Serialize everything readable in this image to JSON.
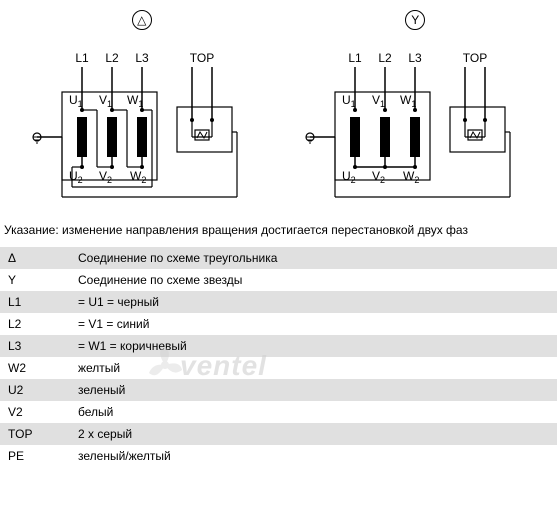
{
  "symbols": {
    "delta": "△",
    "wye": "Y"
  },
  "diagram_labels": {
    "L1": "L1",
    "L2": "L2",
    "L3": "L3",
    "TOP": "TOP",
    "U1": "U",
    "V1": "V",
    "W1": "W",
    "U2": "U",
    "V2": "V",
    "W2": "W",
    "sub1": "1",
    "sub2": "2"
  },
  "note": "Указание: изменение направления вращения достигается перестановкой двух фаз",
  "table": [
    {
      "key": "Δ",
      "value": "Соединение по схеме треугольника"
    },
    {
      "key": "Y",
      "value": "Соединение по схеме звезды"
    },
    {
      "key": "L1",
      "value": "= U1 = черный"
    },
    {
      "key": "L2",
      "value": "= V1 = синий"
    },
    {
      "key": "L3",
      "value": "= W1 = коричневый"
    },
    {
      "key": "W2",
      "value": "желтый"
    },
    {
      "key": "U2",
      "value": "зеленый"
    },
    {
      "key": "V2",
      "value": "белый"
    },
    {
      "key": "TOP",
      "value": "2 x серый"
    },
    {
      "key": "PE",
      "value": "зеленый/желтый"
    }
  ],
  "watermark": "ventel",
  "styling": {
    "alt_row_bg": "#e0e0e0",
    "row_bg": "#ffffff",
    "stroke": "#000000",
    "stroke_width": 1.5,
    "block_fill": "#000000",
    "font_size_label": 12,
    "font_size_sub": 9,
    "watermark_color": "#d0d0d0"
  }
}
